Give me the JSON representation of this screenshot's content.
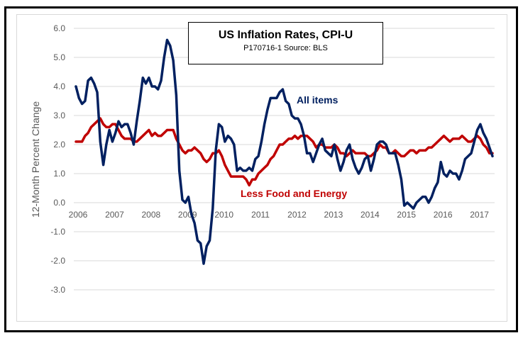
{
  "chart_data": {
    "type": "line",
    "title": "US Inflation Rates, CPI-U",
    "subtitle": "P170716-1 Source: BLS",
    "xlabel": "",
    "ylabel": "12-Month Percent Change",
    "ylim": [
      -3.0,
      6.0
    ],
    "yticks": [
      "6.0",
      "5.0",
      "4.0",
      "3.0",
      "2.0",
      "1.0",
      "0.0",
      "-1.0",
      "-2.0",
      "-3.0"
    ],
    "ytick_values": [
      6,
      5,
      4,
      3,
      2,
      1,
      0,
      -1,
      -2,
      -3
    ],
    "xticks": [
      "2006",
      "2007",
      "2008",
      "2009",
      "2010",
      "2011",
      "2012",
      "2013",
      "2014",
      "2015",
      "2016",
      "2017"
    ],
    "x_start": "2006-01",
    "x_end": "2017-06",
    "frequency": "monthly",
    "grid": true,
    "legend": "inline labels",
    "series": [
      {
        "name": "All items",
        "label": "All items",
        "color": "#002060",
        "values": [
          4.0,
          3.6,
          3.4,
          3.5,
          4.2,
          4.3,
          4.1,
          3.8,
          2.1,
          1.3,
          2.0,
          2.5,
          2.1,
          2.4,
          2.8,
          2.6,
          2.7,
          2.7,
          2.4,
          2.0,
          2.8,
          3.5,
          4.3,
          4.1,
          4.3,
          4.0,
          4.0,
          3.9,
          4.2,
          5.0,
          5.6,
          5.4,
          4.9,
          3.7,
          1.1,
          0.1,
          0.0,
          0.2,
          -0.4,
          -0.7,
          -1.3,
          -1.4,
          -2.1,
          -1.5,
          -1.3,
          -0.2,
          1.8,
          2.7,
          2.6,
          2.1,
          2.3,
          2.2,
          2.0,
          1.1,
          1.2,
          1.1,
          1.1,
          1.2,
          1.1,
          1.5,
          1.6,
          2.1,
          2.7,
          3.2,
          3.6,
          3.6,
          3.6,
          3.8,
          3.9,
          3.5,
          3.4,
          3.0,
          2.9,
          2.9,
          2.7,
          2.3,
          1.7,
          1.7,
          1.4,
          1.7,
          2.0,
          2.2,
          1.8,
          1.7,
          1.6,
          2.0,
          1.5,
          1.1,
          1.4,
          1.8,
          2.0,
          1.5,
          1.2,
          1.0,
          1.2,
          1.5,
          1.6,
          1.1,
          1.5,
          2.0,
          2.1,
          2.1,
          2.0,
          1.7,
          1.7,
          1.7,
          1.3,
          0.8,
          -0.1,
          0.0,
          -0.1,
          -0.2,
          0.0,
          0.1,
          0.2,
          0.2,
          0.0,
          0.2,
          0.5,
          0.7,
          1.4,
          1.0,
          0.9,
          1.1,
          1.0,
          1.0,
          0.8,
          1.1,
          1.5,
          1.6,
          1.7,
          2.1,
          2.5,
          2.7,
          2.4,
          2.2,
          1.9,
          1.6
        ]
      },
      {
        "name": "Less Food and Energy",
        "label": "Less Food and Energy",
        "color": "#C00000",
        "values": [
          2.1,
          2.1,
          2.1,
          2.3,
          2.4,
          2.6,
          2.7,
          2.8,
          2.9,
          2.7,
          2.6,
          2.6,
          2.7,
          2.7,
          2.5,
          2.3,
          2.2,
          2.2,
          2.2,
          2.1,
          2.1,
          2.2,
          2.3,
          2.4,
          2.5,
          2.3,
          2.4,
          2.3,
          2.3,
          2.4,
          2.5,
          2.5,
          2.5,
          2.2,
          2.0,
          1.8,
          1.7,
          1.8,
          1.8,
          1.9,
          1.8,
          1.7,
          1.5,
          1.4,
          1.5,
          1.7,
          1.7,
          1.8,
          1.6,
          1.3,
          1.1,
          0.9,
          0.9,
          0.9,
          0.9,
          0.9,
          0.8,
          0.6,
          0.8,
          0.8,
          1.0,
          1.1,
          1.2,
          1.3,
          1.5,
          1.6,
          1.8,
          2.0,
          2.0,
          2.1,
          2.2,
          2.2,
          2.3,
          2.2,
          2.3,
          2.3,
          2.3,
          2.2,
          2.1,
          1.9,
          2.0,
          2.0,
          1.9,
          1.9,
          1.9,
          2.0,
          1.9,
          1.7,
          1.7,
          1.6,
          1.7,
          1.8,
          1.7,
          1.7,
          1.7,
          1.7,
          1.6,
          1.6,
          1.7,
          1.8,
          2.0,
          1.9,
          1.9,
          1.7,
          1.7,
          1.8,
          1.7,
          1.6,
          1.6,
          1.7,
          1.8,
          1.8,
          1.7,
          1.8,
          1.8,
          1.8,
          1.9,
          1.9,
          2.0,
          2.1,
          2.2,
          2.3,
          2.2,
          2.1,
          2.2,
          2.2,
          2.2,
          2.3,
          2.2,
          2.1,
          2.1,
          2.2,
          2.3,
          2.2,
          2.0,
          1.9,
          1.7,
          1.7
        ]
      }
    ]
  }
}
